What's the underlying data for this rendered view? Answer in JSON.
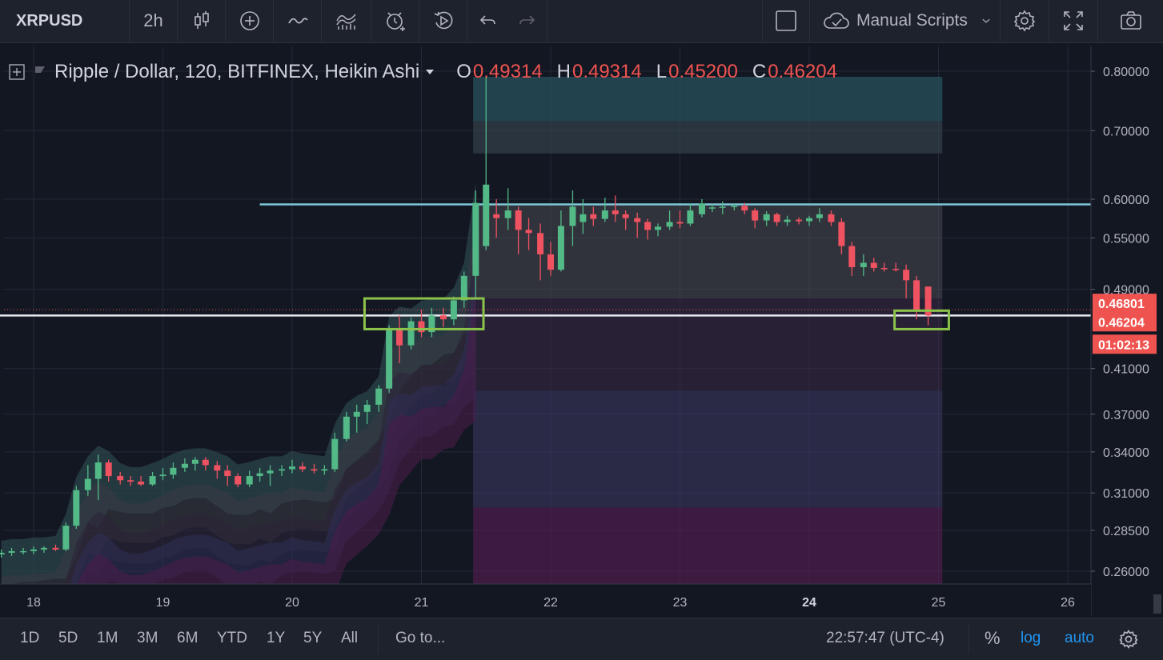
{
  "toolbar": {
    "symbol": "XRPUSD",
    "interval": "2h",
    "scripts_label": "Manual Scripts"
  },
  "legend": {
    "title": "Ripple / Dollar, 120, BITFINEX, Heikin Ashi",
    "o_label": "O",
    "o_value": "0.49314",
    "h_label": "H",
    "h_value": "0.49314",
    "l_label": "L",
    "l_value": "0.45200",
    "c_label": "C",
    "c_value": "0.46204"
  },
  "bottombar": {
    "ranges": [
      "1D",
      "5D",
      "1M",
      "3M",
      "6M",
      "YTD",
      "1Y",
      "5Y",
      "All"
    ],
    "goto": "Go to...",
    "clock": "22:57:47 (UTC-4)",
    "percent": "%",
    "log": "log",
    "auto": "auto"
  },
  "colors": {
    "up": "#52b987",
    "down": "#ef5261",
    "background": "#131722",
    "panel": "#1e222d",
    "resistance_line": "#7ec8d8",
    "highlight_box": "#8bc34a"
  },
  "chart_data": {
    "type": "candlestick",
    "series_type": "Heikin Ashi",
    "price_scale": "log",
    "ylim": [
      0.25,
      0.83
    ],
    "y_ticks": [
      "0.80000",
      "0.70000",
      "0.60000",
      "0.55000",
      "0.49000",
      "0.41000",
      "0.37000",
      "0.34000",
      "0.31000",
      "0.28500",
      "0.26000"
    ],
    "x_ticks": [
      "18",
      "19",
      "20",
      "21",
      "22",
      "23",
      "24",
      "25",
      "26"
    ],
    "x_tick_values": [
      18,
      19,
      20,
      21,
      22,
      23,
      24,
      25,
      26
    ],
    "bold_x_tick": "24",
    "price_labels": {
      "last_price": "0.46204",
      "reference_price": "0.46801",
      "countdown": "01:02:13"
    },
    "horizontal_levels": [
      {
        "price": 0.593,
        "from_day": 19.75,
        "to_day": 26.2,
        "color": "resistance_line"
      },
      {
        "price": 0.462,
        "from_day": 17.7,
        "to_day": 26.2,
        "color": "white"
      }
    ],
    "highlight_boxes": [
      {
        "day_start": 20.56,
        "day_end": 21.48,
        "price_low": 0.448,
        "price_high": 0.48
      },
      {
        "day_start": 24.66,
        "day_end": 25.08,
        "price_low": 0.448,
        "price_high": 0.467
      }
    ],
    "bands": [
      {
        "name": "band-upper-1",
        "color": "#2a5560",
        "opacity": 0.7,
        "from_day": 21.4,
        "to_day": 25.03,
        "low": 0.715,
        "high": 0.79
      },
      {
        "name": "band-upper-2",
        "color": "#33414a",
        "opacity": 0.7,
        "from_day": 21.4,
        "to_day": 25.03,
        "low": 0.665,
        "high": 0.715
      },
      {
        "name": "band-mid",
        "color": "#4a4a52",
        "opacity": 0.55,
        "from_day": 21.4,
        "to_day": 25.03,
        "low": 0.48,
        "high": 0.593
      },
      {
        "name": "band-low-1",
        "color": "#3b2a45",
        "opacity": 0.55,
        "from_day": 21.4,
        "to_day": 25.03,
        "low": 0.39,
        "high": 0.48
      },
      {
        "name": "band-low-2",
        "color": "#3e3a66",
        "opacity": 0.55,
        "from_day": 21.4,
        "to_day": 25.03,
        "low": 0.3,
        "high": 0.39
      },
      {
        "name": "band-low-3",
        "color": "#5a1e55",
        "opacity": 0.6,
        "from_day": 21.4,
        "to_day": 25.03,
        "low": 0.25,
        "high": 0.3
      }
    ],
    "candles": [
      {
        "x": 17.75,
        "o": 0.27,
        "h": 0.273,
        "l": 0.268,
        "c": 0.271
      },
      {
        "x": 17.83,
        "o": 0.271,
        "h": 0.274,
        "l": 0.269,
        "c": 0.272
      },
      {
        "x": 17.92,
        "o": 0.272,
        "h": 0.274,
        "l": 0.27,
        "c": 0.272
      },
      {
        "x": 18.0,
        "o": 0.272,
        "h": 0.275,
        "l": 0.27,
        "c": 0.273
      },
      {
        "x": 18.08,
        "o": 0.273,
        "h": 0.275,
        "l": 0.271,
        "c": 0.274
      },
      {
        "x": 18.17,
        "o": 0.274,
        "h": 0.276,
        "l": 0.272,
        "c": 0.273
      },
      {
        "x": 18.25,
        "o": 0.273,
        "h": 0.29,
        "l": 0.272,
        "c": 0.288
      },
      {
        "x": 18.33,
        "o": 0.288,
        "h": 0.315,
        "l": 0.286,
        "c": 0.312
      },
      {
        "x": 18.42,
        "o": 0.312,
        "h": 0.33,
        "l": 0.308,
        "c": 0.32
      },
      {
        "x": 18.5,
        "o": 0.32,
        "h": 0.338,
        "l": 0.305,
        "c": 0.332
      },
      {
        "x": 18.58,
        "o": 0.332,
        "h": 0.334,
        "l": 0.318,
        "c": 0.322
      },
      {
        "x": 18.67,
        "o": 0.322,
        "h": 0.325,
        "l": 0.316,
        "c": 0.319
      },
      {
        "x": 18.75,
        "o": 0.319,
        "h": 0.322,
        "l": 0.315,
        "c": 0.318
      },
      {
        "x": 18.83,
        "o": 0.318,
        "h": 0.322,
        "l": 0.315,
        "c": 0.316
      },
      {
        "x": 18.92,
        "o": 0.316,
        "h": 0.325,
        "l": 0.315,
        "c": 0.322
      },
      {
        "x": 19.0,
        "o": 0.322,
        "h": 0.328,
        "l": 0.319,
        "c": 0.323
      },
      {
        "x": 19.08,
        "o": 0.323,
        "h": 0.332,
        "l": 0.32,
        "c": 0.328
      },
      {
        "x": 19.17,
        "o": 0.328,
        "h": 0.335,
        "l": 0.325,
        "c": 0.331
      },
      {
        "x": 19.25,
        "o": 0.331,
        "h": 0.336,
        "l": 0.326,
        "c": 0.334
      },
      {
        "x": 19.33,
        "o": 0.334,
        "h": 0.336,
        "l": 0.326,
        "c": 0.33
      },
      {
        "x": 19.42,
        "o": 0.33,
        "h": 0.333,
        "l": 0.32,
        "c": 0.326
      },
      {
        "x": 19.5,
        "o": 0.326,
        "h": 0.33,
        "l": 0.315,
        "c": 0.322
      },
      {
        "x": 19.58,
        "o": 0.322,
        "h": 0.324,
        "l": 0.314,
        "c": 0.316
      },
      {
        "x": 19.67,
        "o": 0.316,
        "h": 0.326,
        "l": 0.314,
        "c": 0.322
      },
      {
        "x": 19.75,
        "o": 0.322,
        "h": 0.328,
        "l": 0.318,
        "c": 0.324
      },
      {
        "x": 19.83,
        "o": 0.324,
        "h": 0.33,
        "l": 0.315,
        "c": 0.326
      },
      {
        "x": 19.92,
        "o": 0.326,
        "h": 0.33,
        "l": 0.322,
        "c": 0.327
      },
      {
        "x": 20.0,
        "o": 0.327,
        "h": 0.334,
        "l": 0.324,
        "c": 0.329
      },
      {
        "x": 20.08,
        "o": 0.329,
        "h": 0.332,
        "l": 0.325,
        "c": 0.327
      },
      {
        "x": 20.17,
        "o": 0.327,
        "h": 0.331,
        "l": 0.324,
        "c": 0.326
      },
      {
        "x": 20.25,
        "o": 0.326,
        "h": 0.33,
        "l": 0.323,
        "c": 0.327
      },
      {
        "x": 20.33,
        "o": 0.327,
        "h": 0.355,
        "l": 0.325,
        "c": 0.35
      },
      {
        "x": 20.42,
        "o": 0.35,
        "h": 0.372,
        "l": 0.348,
        "c": 0.368
      },
      {
        "x": 20.5,
        "o": 0.368,
        "h": 0.378,
        "l": 0.355,
        "c": 0.372
      },
      {
        "x": 20.58,
        "o": 0.372,
        "h": 0.382,
        "l": 0.362,
        "c": 0.378
      },
      {
        "x": 20.67,
        "o": 0.378,
        "h": 0.395,
        "l": 0.372,
        "c": 0.392
      },
      {
        "x": 20.75,
        "o": 0.392,
        "h": 0.452,
        "l": 0.388,
        "c": 0.448
      },
      {
        "x": 20.83,
        "o": 0.448,
        "h": 0.462,
        "l": 0.415,
        "c": 0.432
      },
      {
        "x": 20.92,
        "o": 0.432,
        "h": 0.46,
        "l": 0.428,
        "c": 0.456
      },
      {
        "x": 21.0,
        "o": 0.456,
        "h": 0.468,
        "l": 0.44,
        "c": 0.445
      },
      {
        "x": 21.08,
        "o": 0.445,
        "h": 0.47,
        "l": 0.44,
        "c": 0.462
      },
      {
        "x": 21.17,
        "o": 0.462,
        "h": 0.47,
        "l": 0.45,
        "c": 0.458
      },
      {
        "x": 21.25,
        "o": 0.458,
        "h": 0.482,
        "l": 0.452,
        "c": 0.478
      },
      {
        "x": 21.33,
        "o": 0.478,
        "h": 0.51,
        "l": 0.47,
        "c": 0.505
      },
      {
        "x": 21.42,
        "o": 0.505,
        "h": 0.612,
        "l": 0.48,
        "c": 0.595
      },
      {
        "x": 21.5,
        "o": 0.54,
        "h": 0.79,
        "l": 0.535,
        "c": 0.62
      },
      {
        "x": 21.58,
        "o": 0.58,
        "h": 0.6,
        "l": 0.55,
        "c": 0.575
      },
      {
        "x": 21.67,
        "o": 0.575,
        "h": 0.615,
        "l": 0.56,
        "c": 0.585
      },
      {
        "x": 21.75,
        "o": 0.585,
        "h": 0.59,
        "l": 0.53,
        "c": 0.56
      },
      {
        "x": 21.83,
        "o": 0.56,
        "h": 0.575,
        "l": 0.535,
        "c": 0.556
      },
      {
        "x": 21.92,
        "o": 0.556,
        "h": 0.568,
        "l": 0.5,
        "c": 0.53
      },
      {
        "x": 22.0,
        "o": 0.53,
        "h": 0.545,
        "l": 0.505,
        "c": 0.512
      },
      {
        "x": 22.08,
        "o": 0.512,
        "h": 0.585,
        "l": 0.51,
        "c": 0.565
      },
      {
        "x": 22.17,
        "o": 0.565,
        "h": 0.612,
        "l": 0.54,
        "c": 0.59
      },
      {
        "x": 22.25,
        "o": 0.57,
        "h": 0.6,
        "l": 0.555,
        "c": 0.58
      },
      {
        "x": 22.33,
        "o": 0.58,
        "h": 0.59,
        "l": 0.565,
        "c": 0.574
      },
      {
        "x": 22.42,
        "o": 0.574,
        "h": 0.602,
        "l": 0.57,
        "c": 0.585
      },
      {
        "x": 22.5,
        "o": 0.585,
        "h": 0.605,
        "l": 0.57,
        "c": 0.58
      },
      {
        "x": 22.58,
        "o": 0.58,
        "h": 0.585,
        "l": 0.56,
        "c": 0.575
      },
      {
        "x": 22.67,
        "o": 0.575,
        "h": 0.582,
        "l": 0.55,
        "c": 0.57
      },
      {
        "x": 22.75,
        "o": 0.57,
        "h": 0.574,
        "l": 0.548,
        "c": 0.56
      },
      {
        "x": 22.83,
        "o": 0.56,
        "h": 0.568,
        "l": 0.552,
        "c": 0.564
      },
      {
        "x": 22.92,
        "o": 0.564,
        "h": 0.585,
        "l": 0.56,
        "c": 0.57
      },
      {
        "x": 23.0,
        "o": 0.57,
        "h": 0.585,
        "l": 0.562,
        "c": 0.568
      },
      {
        "x": 23.08,
        "o": 0.568,
        "h": 0.594,
        "l": 0.565,
        "c": 0.585
      },
      {
        "x": 23.17,
        "o": 0.58,
        "h": 0.6,
        "l": 0.576,
        "c": 0.594
      },
      {
        "x": 23.25,
        "o": 0.588,
        "h": 0.594,
        "l": 0.583,
        "c": 0.589
      },
      {
        "x": 23.33,
        "o": 0.589,
        "h": 0.597,
        "l": 0.58,
        "c": 0.59
      },
      {
        "x": 23.42,
        "o": 0.59,
        "h": 0.594,
        "l": 0.585,
        "c": 0.591
      },
      {
        "x": 23.5,
        "o": 0.591,
        "h": 0.595,
        "l": 0.58,
        "c": 0.585
      },
      {
        "x": 23.58,
        "o": 0.585,
        "h": 0.588,
        "l": 0.562,
        "c": 0.572
      },
      {
        "x": 23.67,
        "o": 0.572,
        "h": 0.584,
        "l": 0.565,
        "c": 0.58
      },
      {
        "x": 23.75,
        "o": 0.58,
        "h": 0.582,
        "l": 0.565,
        "c": 0.57
      },
      {
        "x": 23.83,
        "o": 0.57,
        "h": 0.578,
        "l": 0.565,
        "c": 0.573
      },
      {
        "x": 23.92,
        "o": 0.573,
        "h": 0.576,
        "l": 0.567,
        "c": 0.571
      },
      {
        "x": 24.0,
        "o": 0.571,
        "h": 0.578,
        "l": 0.565,
        "c": 0.575
      },
      {
        "x": 24.08,
        "o": 0.575,
        "h": 0.588,
        "l": 0.57,
        "c": 0.58
      },
      {
        "x": 24.17,
        "o": 0.58,
        "h": 0.585,
        "l": 0.565,
        "c": 0.57
      },
      {
        "x": 24.25,
        "o": 0.57,
        "h": 0.575,
        "l": 0.53,
        "c": 0.54
      },
      {
        "x": 24.33,
        "o": 0.54,
        "h": 0.545,
        "l": 0.505,
        "c": 0.515
      },
      {
        "x": 24.42,
        "o": 0.515,
        "h": 0.53,
        "l": 0.505,
        "c": 0.52
      },
      {
        "x": 24.5,
        "o": 0.52,
        "h": 0.526,
        "l": 0.51,
        "c": 0.514
      },
      {
        "x": 24.58,
        "o": 0.514,
        "h": 0.52,
        "l": 0.51,
        "c": 0.513
      },
      {
        "x": 24.67,
        "o": 0.513,
        "h": 0.52,
        "l": 0.51,
        "c": 0.512
      },
      {
        "x": 24.75,
        "o": 0.512,
        "h": 0.518,
        "l": 0.48,
        "c": 0.5
      },
      {
        "x": 24.83,
        "o": 0.5,
        "h": 0.505,
        "l": 0.458,
        "c": 0.468
      },
      {
        "x": 24.92,
        "o": 0.493,
        "h": 0.493,
        "l": 0.452,
        "c": 0.462
      }
    ]
  }
}
